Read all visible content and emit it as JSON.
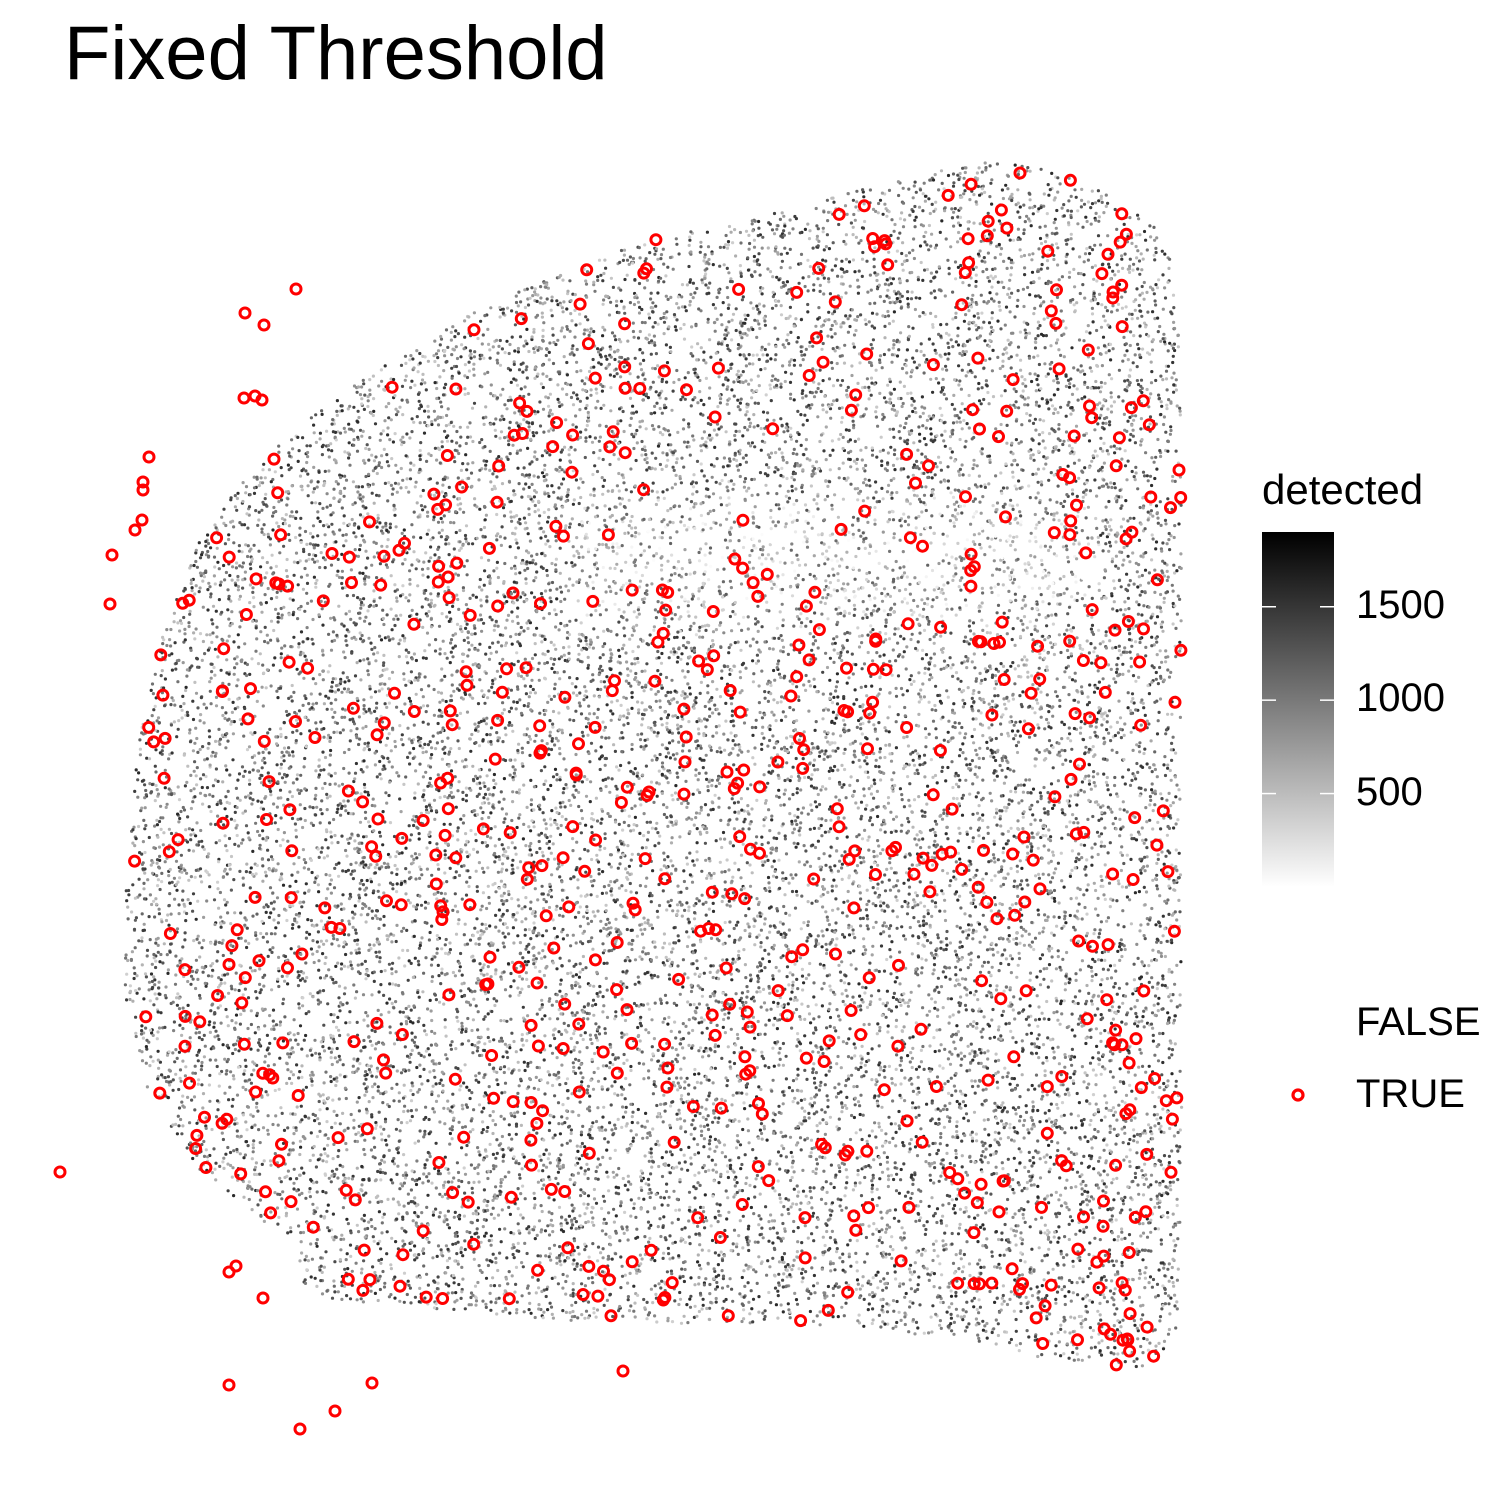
{
  "chart_data": {
    "type": "scatter",
    "title": "Fixed Threshold",
    "xlabel": "",
    "ylabel": "",
    "grid": false,
    "axes_visible": false,
    "color_legend": {
      "title": "detected",
      "ticks": [
        500,
        1000,
        1500
      ],
      "range": [
        0,
        1900
      ],
      "low_color": "#ffffff",
      "high_color": "#000000"
    },
    "shape_legend": {
      "entries": [
        {
          "label": "FALSE",
          "marker": "none"
        },
        {
          "label": "TRUE",
          "marker": "open-circle",
          "color": "#ff0000"
        }
      ]
    },
    "series": [
      {
        "name": "FALSE",
        "marker": "small-dot",
        "color_by": "detected"
      },
      {
        "name": "TRUE",
        "marker": "open-circle",
        "color": "#ff0000"
      }
    ]
  }
}
